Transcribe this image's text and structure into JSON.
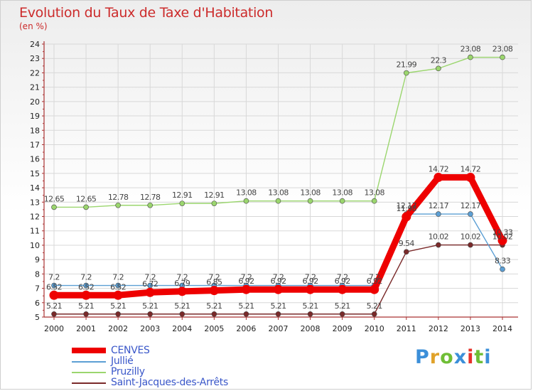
{
  "header": {
    "title": "Evolution du Taux de Taxe d'Habitation",
    "subtitle": "(en %)"
  },
  "logo": {
    "letters": [
      "P",
      "r",
      "o",
      "x",
      "i",
      "t",
      "i"
    ],
    "colors": [
      "#3b8fd9",
      "#e0a22a",
      "#6fbe36",
      "#3b8fd9",
      "#e6302a",
      "#6fbe36",
      "#3b8fd9"
    ]
  },
  "chart_data": {
    "type": "line",
    "title": "Evolution du Taux de Taxe d'Habitation",
    "subtitle": "(en %)",
    "xlabel": "",
    "ylabel": "",
    "x": [
      "2000",
      "2001",
      "2002",
      "2003",
      "2004",
      "2005",
      "2006",
      "2007",
      "2008",
      "2009",
      "2010",
      "2011",
      "2012",
      "2013",
      "2014"
    ],
    "ylim": [
      5,
      24
    ],
    "yticks": [
      5,
      6,
      7,
      8,
      9,
      10,
      11,
      12,
      13,
      14,
      15,
      16,
      17,
      18,
      19,
      20,
      21,
      22,
      23,
      24
    ],
    "grid": true,
    "legend_position": "bottom",
    "series": [
      {
        "name": "CENVES",
        "color": "#ee0000",
        "values": [
          6.52,
          6.52,
          6.52,
          6.72,
          6.79,
          6.85,
          6.92,
          6.92,
          6.92,
          6.92,
          6.92,
          11.98,
          14.72,
          14.72,
          10.33
        ],
        "labels": [
          "6.52",
          "6.52",
          "6.52",
          "6.72",
          "6.79",
          "6.85",
          "6.92",
          "6.92",
          "6.92",
          "6.92",
          "6.92",
          "11.98",
          "14.72",
          "14.72",
          "10.33"
        ]
      },
      {
        "name": "Jullié",
        "color": "#5c9fd4",
        "values": [
          7.2,
          7.2,
          7.2,
          7.2,
          7.2,
          7.2,
          7.2,
          7.2,
          7.2,
          7.2,
          7.2,
          12.17,
          12.17,
          12.17,
          8.33
        ],
        "labels": [
          "7.2",
          "7.2",
          "7.2",
          "7.2",
          "7.2",
          "7.2",
          "7.2",
          "7.2",
          "7.2",
          "7.2",
          "7.2",
          "12.17",
          "12.17",
          "12.17",
          "8.33"
        ]
      },
      {
        "name": "Pruzilly",
        "color": "#9bd66e",
        "values": [
          12.65,
          12.65,
          12.78,
          12.78,
          12.91,
          12.91,
          13.08,
          13.08,
          13.08,
          13.08,
          13.08,
          21.99,
          22.3,
          23.08,
          23.08
        ],
        "labels": [
          "12.65",
          "12.65",
          "12.78",
          "12.78",
          "12.91",
          "12.91",
          "13.08",
          "13.08",
          "13.08",
          "13.08",
          "13.08",
          "21.99",
          "22.3",
          "23.08",
          "23.08"
        ]
      },
      {
        "name": "Saint-Jacques-des-Arrêts",
        "color": "#7a2a2a",
        "values": [
          5.21,
          5.21,
          5.21,
          5.21,
          5.21,
          5.21,
          5.21,
          5.21,
          5.21,
          5.21,
          5.21,
          9.54,
          10.02,
          10.02,
          10.02
        ],
        "labels": [
          "5.21",
          "5.21",
          "5.21",
          "5.21",
          "5.21",
          "5.21",
          "5.21",
          "5.21",
          "5.21",
          "5.21",
          "5.21",
          "9.54",
          "10.02",
          "10.02",
          "10.02"
        ]
      }
    ]
  }
}
